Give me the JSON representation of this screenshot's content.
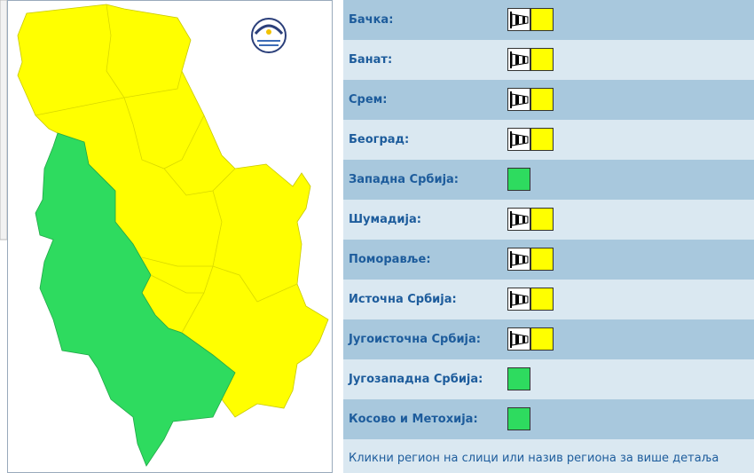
{
  "regions": [
    {
      "name": "Бачка:",
      "level": "#ffff00",
      "wind": true
    },
    {
      "name": "Банат:",
      "level": "#ffff00",
      "wind": true
    },
    {
      "name": "Срем:",
      "level": "#ffff00",
      "wind": true
    },
    {
      "name": "Београд:",
      "level": "#ffff00",
      "wind": true
    },
    {
      "name": "Западна Србија:",
      "level": "#2edb5f",
      "wind": false
    },
    {
      "name": "Шумадија:",
      "level": "#ffff00",
      "wind": true
    },
    {
      "name": "Поморавље:",
      "level": "#ffff00",
      "wind": true
    },
    {
      "name": "Источна Србија:",
      "level": "#ffff00",
      "wind": true
    },
    {
      "name": "Југоисточна Србија:",
      "level": "#ffff00",
      "wind": true
    },
    {
      "name": "Југозападна Србија:",
      "level": "#2edb5f",
      "wind": false
    },
    {
      "name": "Косово и Метохија:",
      "level": "#2edb5f",
      "wind": false
    }
  ],
  "footer": "Кликни регион на слици или назив региона за више детаља"
}
